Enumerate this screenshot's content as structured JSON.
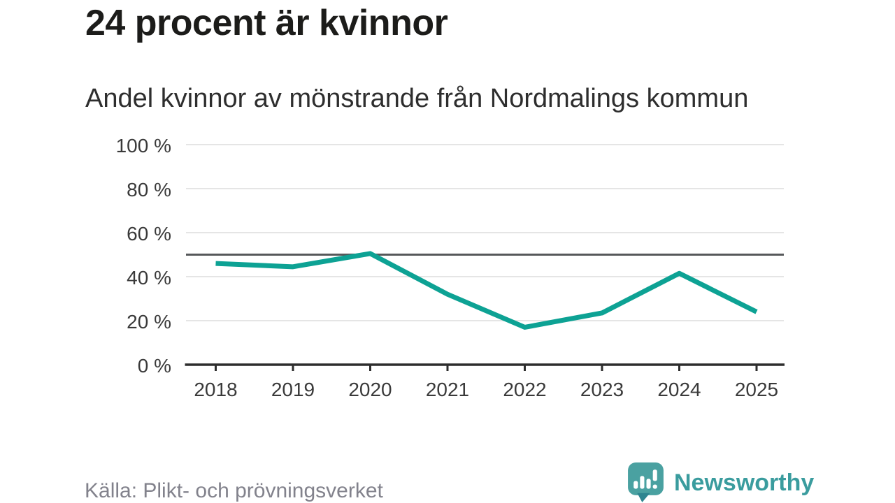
{
  "chart_data": {
    "type": "line",
    "title": "24 procent är kvinnor",
    "subtitle": "Andel kvinnor av mönstrande från Nordmalings kommun",
    "x": [
      "2018",
      "2019",
      "2020",
      "2021",
      "2022",
      "2023",
      "2024",
      "2025"
    ],
    "series": [
      {
        "name": "Andel kvinnor av mönstrande",
        "values": [
          46,
          44.5,
          50.5,
          32,
          17,
          23.5,
          41.5,
          24
        ]
      }
    ],
    "unit": "%",
    "ylim": [
      0,
      100
    ],
    "yticks": [
      0,
      20,
      40,
      60,
      80,
      100
    ],
    "ytick_suffix": " %",
    "reference_line": 50,
    "grid": true,
    "legend": "none",
    "colors": {
      "line": "#0da294",
      "reference": "#56585a",
      "grid": "#e5e5e5",
      "axis": "#2d2d2d",
      "tick_label": "#3a3a3a"
    }
  },
  "footer": {
    "source": "Källa: Plikt- och prövningsverket",
    "brand": "Newsworthy",
    "brand_color": "#3a9c9e",
    "logo_color": "#4aa1a1",
    "logo_color_dark": "#2e8590"
  }
}
